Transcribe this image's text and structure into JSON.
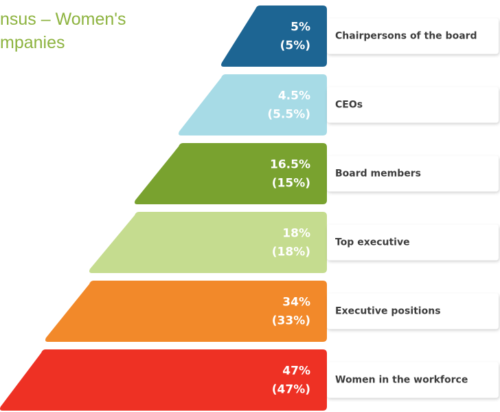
{
  "header": {
    "title": [
      "nsus – Women's",
      "mpanies"
    ]
  },
  "tiers": [
    {
      "value": "5%",
      "previous": "(5%)",
      "label": "Chairpersons of the board"
    },
    {
      "value": "4.5%",
      "previous": "(5.5%)",
      "label": "CEOs"
    },
    {
      "value": "16.5%",
      "previous": "(15%)",
      "label": "Board members"
    },
    {
      "value": "18%",
      "previous": "(18%)",
      "label": "Top executive"
    },
    {
      "value": "34%",
      "previous": "(33%)",
      "label": "Executive positions"
    },
    {
      "value": "47%",
      "previous": "(47%)",
      "label": "Women in the workforce"
    }
  ]
}
